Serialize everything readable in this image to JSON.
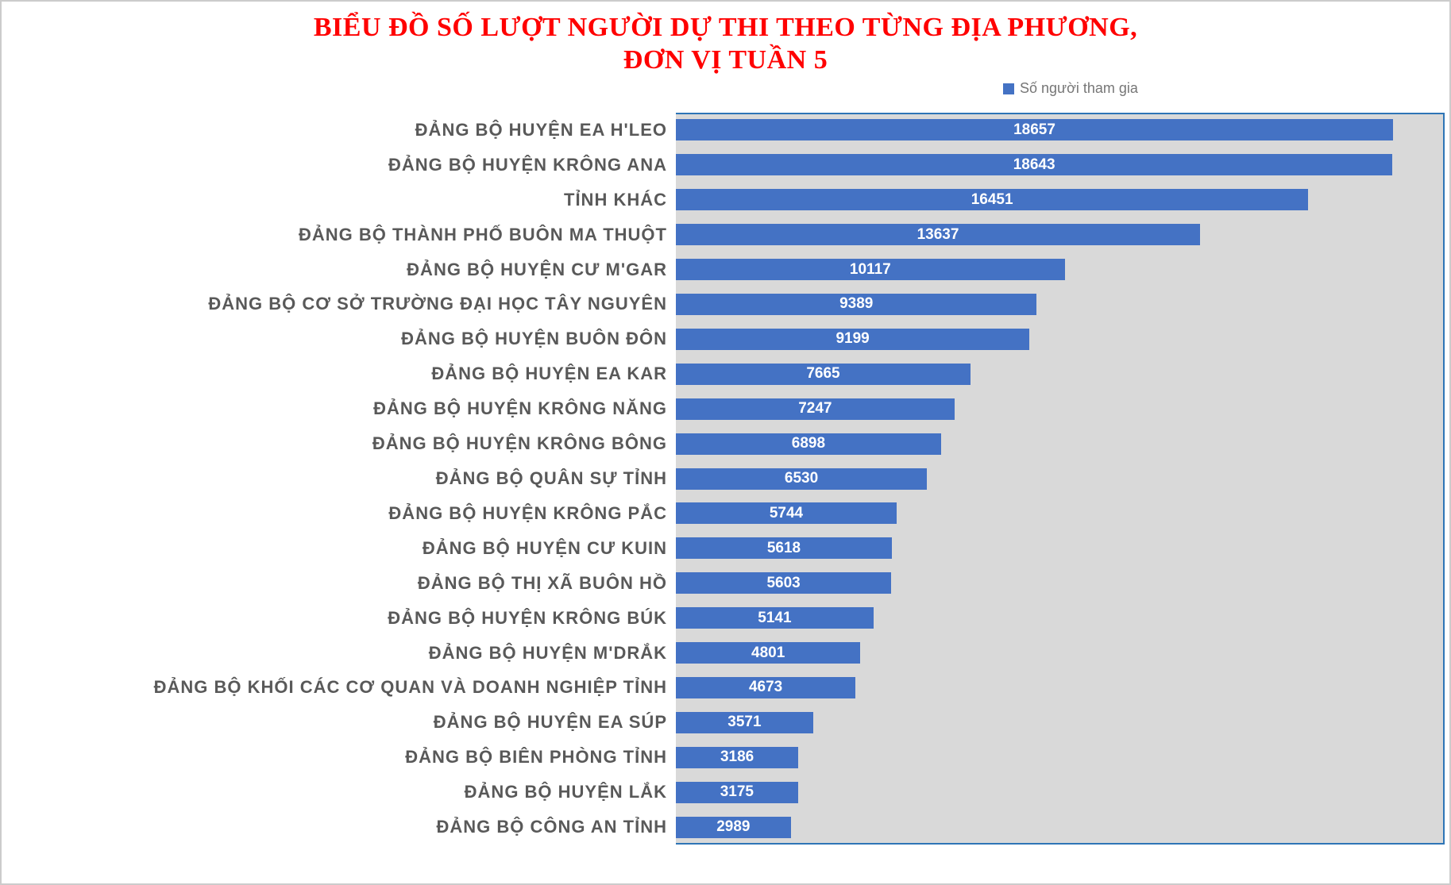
{
  "title": {
    "line1": "BIỂU ĐỒ SỐ LƯỢT NGƯỜI DỰ THI THEO TỪNG ĐỊA PHƯƠNG,",
    "line2": "ĐƠN VỊ TUẦN 5",
    "color": "#FF0000"
  },
  "legend": {
    "label": "Số người tham gia",
    "swatch_color": "#4472C4"
  },
  "chart_data": {
    "type": "bar",
    "orientation": "horizontal",
    "title": "BIỂU ĐỒ SỐ LƯỢT NGƯỜI DỰ THI THEO TỪNG ĐỊA PHƯƠNG, ĐƠN VỊ TUẦN 5",
    "series_name": "Số người tham gia",
    "categories": [
      "ĐẢNG BỘ HUYỆN EA H'LEO",
      "ĐẢNG BỘ HUYỆN KRÔNG ANA",
      "TỈNH KHÁC",
      "ĐẢNG BỘ THÀNH PHỐ BUÔN MA THUỘT",
      "ĐẢNG BỘ HUYỆN CƯ M'GAR",
      "ĐẢNG BỘ CƠ SỞ TRƯỜNG ĐẠI HỌC TÂY NGUYÊN",
      "ĐẢNG BỘ HUYỆN BUÔN ĐÔN",
      "ĐẢNG BỘ HUYỆN EA KAR",
      "ĐẢNG BỘ HUYỆN KRÔNG NĂNG",
      "ĐẢNG BỘ HUYỆN KRÔNG BÔNG",
      "ĐẢNG BỘ QUÂN SỰ TỈNH",
      "ĐẢNG BỘ HUYỆN KRÔNG PẮC",
      "ĐẢNG BỘ HUYỆN CƯ KUIN",
      "ĐẢNG BỘ THỊ XÃ BUÔN HỒ",
      "ĐẢNG BỘ HUYỆN KRÔNG BÚK",
      "ĐẢNG BỘ HUYỆN M'DRẮK",
      "ĐẢNG BỘ KHỐI CÁC CƠ QUAN VÀ DOANH NGHIỆP TỈNH",
      "ĐẢNG BỘ HUYỆN EA SÚP",
      "ĐẢNG BỘ BIÊN PHÒNG TỈNH",
      "ĐẢNG BỘ HUYỆN LẮK",
      "ĐẢNG BỘ CÔNG AN TỈNH"
    ],
    "values": [
      18657,
      18643,
      16451,
      13637,
      10117,
      9389,
      9199,
      7665,
      7247,
      6898,
      6530,
      5744,
      5618,
      5603,
      5141,
      4801,
      4673,
      3571,
      3186,
      3175,
      2989
    ],
    "xlim": [
      0,
      20000
    ],
    "grid": false,
    "legend_position": "top-right",
    "data_labels": "inside-center",
    "bar_color": "#4472C4",
    "plot_background": "#D9D9D9",
    "plot_border_color": "#2E75B6",
    "category_label_color": "#595959",
    "value_label_color": "#FFFFFF"
  }
}
